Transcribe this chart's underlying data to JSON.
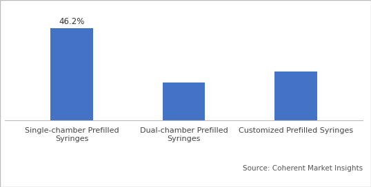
{
  "categories": [
    "Single-chamber Prefilled\nSyringes",
    "Dual-chamber Prefilled\nSyringes",
    "Customized Prefilled Syringes"
  ],
  "values": [
    46.2,
    19.0,
    24.5
  ],
  "bar_color": "#4472C4",
  "bar_label": "46.2%",
  "ylim": [
    0,
    58
  ],
  "source_text": "Source: Coherent Market Insights",
  "background_color": "#ffffff",
  "label_fontsize": 8,
  "annotation_fontsize": 8.5,
  "source_fontsize": 7.5,
  "bar_width": 0.38
}
